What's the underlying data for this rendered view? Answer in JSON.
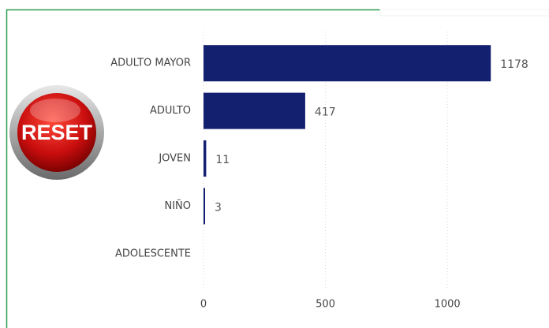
{
  "reset_button": {
    "label": "RESET"
  },
  "chart_data": {
    "type": "bar",
    "orientation": "horizontal",
    "categories": [
      "ADULTO MAYOR",
      "ADULTO",
      "JOVEN",
      "NIÑO",
      "ADOLESCENTE"
    ],
    "values": [
      1178,
      417,
      11,
      3,
      null
    ],
    "color": "#13206f",
    "xlim": [
      0,
      1200
    ],
    "xticks": [
      0,
      500,
      1000
    ],
    "grid": true
  }
}
